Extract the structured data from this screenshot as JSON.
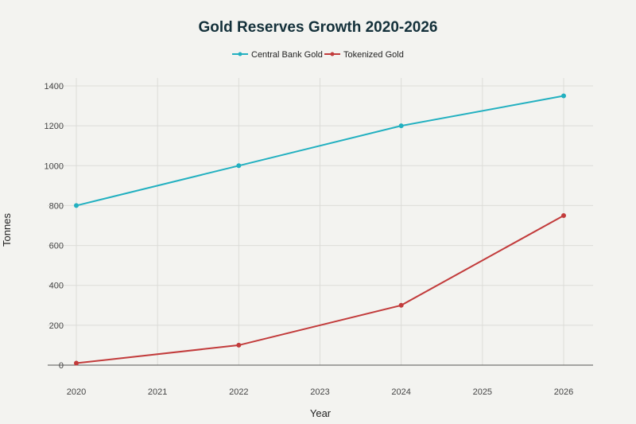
{
  "chart_data": {
    "type": "line",
    "title": "Gold Reserves Growth 2020-2026",
    "xlabel": "Year",
    "ylabel": "Tonnes",
    "x_ticks": [
      "2020",
      "2021",
      "2022",
      "2023",
      "2024",
      "2025",
      "2026"
    ],
    "y_ticks": [
      "0",
      "200",
      "400",
      "600",
      "800",
      "1000",
      "1200",
      "1400"
    ],
    "xlim": [
      2020,
      2026
    ],
    "ylim": [
      0,
      1400
    ],
    "grid": true,
    "legend_position": "top-center",
    "series": [
      {
        "name": "Central Bank Gold",
        "color": "#22b0c0",
        "x": [
          2020,
          2022,
          2024,
          2026
        ],
        "values": [
          800,
          1000,
          1200,
          1350
        ]
      },
      {
        "name": "Tokenized Gold",
        "color": "#c23b3b",
        "x": [
          2020,
          2022,
          2024,
          2026
        ],
        "values": [
          10,
          100,
          300,
          750
        ]
      }
    ]
  }
}
